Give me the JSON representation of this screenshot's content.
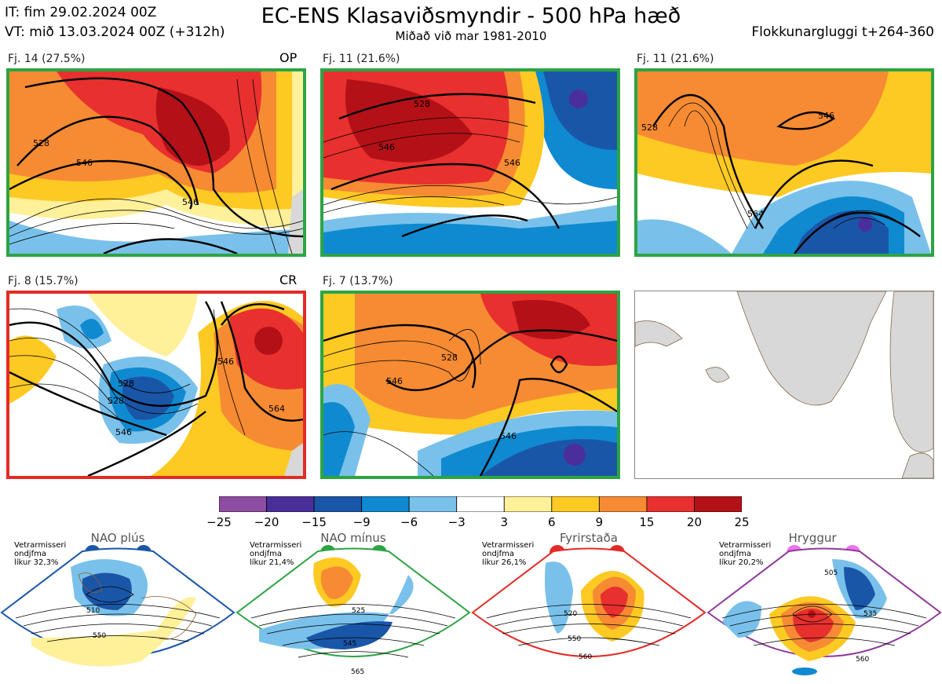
{
  "header": {
    "initial_time": "IT: fim 29.02.2024 00Z",
    "valid_time": "VT: mið 13.03.2024 00Z  (+312h)",
    "title": "EC-ENS Klasaviðsmyndir - 500 hPa hæð",
    "subtitle": "Miðað við mar 1981-2010",
    "window": "Flokkunargluggi t+264-360"
  },
  "clusters": [
    {
      "label": "Fj. 14 (27.5%)",
      "tag": "OP",
      "regime": "NAO mínus",
      "border_color": "#2ca444",
      "contour_labels": [
        "546",
        "528",
        "546",
        "528",
        "546",
        "54"
      ]
    },
    {
      "label": "Fj. 11 (21.6%)",
      "tag": "",
      "regime": "NAO mínus",
      "border_color": "#2ca444",
      "contour_labels": [
        "528",
        "528",
        "546",
        "546",
        "546"
      ]
    },
    {
      "label": "Fj. 11 (21.6%)",
      "tag": "",
      "regime": "NAO mínus",
      "border_color": "#2ca444",
      "contour_labels": [
        "528",
        "528",
        "546",
        "546",
        "564",
        "546"
      ]
    },
    {
      "label": "Fj. 8 (15.7%)",
      "tag": "CR",
      "regime": "Fyrirstaða",
      "border_color": "#e32b26",
      "contour_labels": [
        "528",
        "528",
        "546",
        "546",
        "564",
        "564",
        "528"
      ]
    },
    {
      "label": "Fj. 7 (13.7%)",
      "tag": "",
      "regime": "NAO mínus",
      "border_color": "#2ca444",
      "contour_labels": [
        "528",
        "528",
        "546",
        "546",
        "546"
      ]
    }
  ],
  "colorbar": {
    "colors": [
      "#8e4da3",
      "#4a2f9a",
      "#1a56a8",
      "#0f8ad0",
      "#79c1ea",
      "#ffffff",
      "#fff09a",
      "#fdc923",
      "#f68b33",
      "#e8302e",
      "#b31117"
    ],
    "ticks": [
      "−25",
      "−20",
      "−15",
      "−9",
      "−6",
      "−3",
      "3",
      "6",
      "9",
      "15",
      "20",
      "25"
    ]
  },
  "regimes": [
    {
      "name": "NAO plús",
      "stat_lines": [
        "Vetrarmisseri",
        "ondjfma",
        "líkur 32,3%"
      ],
      "color": "#1a56a8",
      "contour_labels": [
        "510",
        "550"
      ]
    },
    {
      "name": "NAO mínus",
      "stat_lines": [
        "Vetrarmisseri",
        "ondjfma",
        "líkur 21,4%"
      ],
      "color": "#2ca444",
      "contour_labels": [
        "525",
        "545",
        "565"
      ]
    },
    {
      "name": "Fyrirstaða",
      "stat_lines": [
        "Vetrarmisseri",
        "ondjfma",
        "líkur 26,1%"
      ],
      "color": "#e32b26",
      "contour_labels": [
        "520",
        "550",
        "560"
      ]
    },
    {
      "name": "Hryggur",
      "stat_lines": [
        "Vetrarmisseri",
        "ondjfma",
        "líkur 20,2%"
      ],
      "color": "#8e3a9a",
      "contour_labels": [
        "505",
        "535",
        "560"
      ]
    }
  ]
}
